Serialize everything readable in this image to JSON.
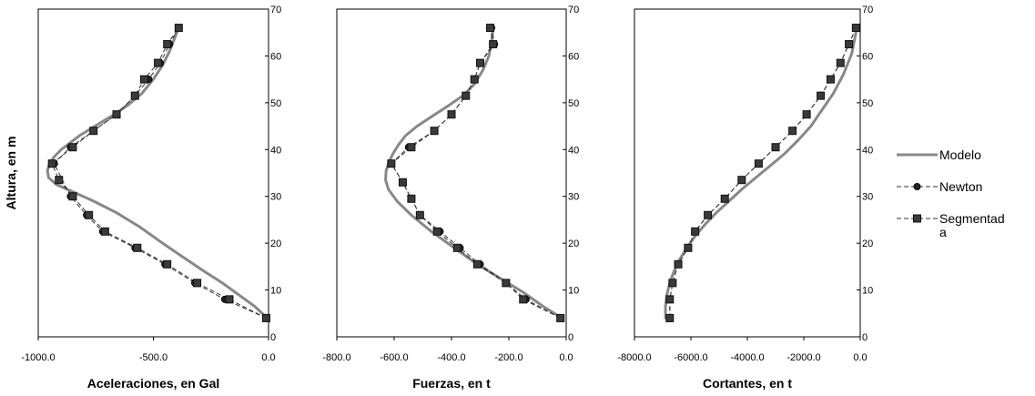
{
  "y_axis_label": "Altura, en m",
  "chart_data": [
    {
      "type": "line",
      "xlabel": "Aceleraciones, en Gal",
      "xlim": [
        -1000,
        0
      ],
      "ylim": [
        0,
        70
      ],
      "xticks": [
        -1000,
        -500,
        0
      ],
      "xtick_labels": [
        "-1000.0",
        "-500.0",
        "0.0"
      ],
      "yticks": [
        0,
        10,
        20,
        30,
        40,
        50,
        60,
        70
      ],
      "grid": false,
      "series": [
        {
          "name": "Modelo",
          "style": "solid",
          "color": "#888888",
          "x": [
            -5,
            -60,
            -130,
            -200,
            -280,
            -370,
            -460,
            -560,
            -660,
            -760,
            -850,
            -920,
            -955,
            -960,
            -950,
            -930,
            -900,
            -860,
            -820,
            -770,
            -720,
            -670,
            -610,
            -550,
            -500,
            -460,
            -430,
            -410,
            -390
          ],
          "y": [
            4,
            6.5,
            9,
            11.5,
            14,
            17,
            20,
            23.5,
            26.5,
            29,
            31,
            32.5,
            34,
            35.5,
            37,
            38.5,
            40,
            41.5,
            43,
            44.5,
            46,
            47.5,
            49.5,
            52,
            55,
            58,
            61,
            63.5,
            66
          ]
        },
        {
          "name": "Newton",
          "style": "dashed-circle",
          "color": "#333333",
          "x": [
            -10,
            -190,
            -320,
            -450,
            -580,
            -720,
            -790,
            -860,
            -930,
            -860,
            -760,
            -660,
            -580,
            -520,
            -470,
            -430,
            -390
          ],
          "y": [
            4,
            8,
            11.5,
            15.5,
            19,
            22.5,
            26,
            30,
            37,
            40.5,
            44,
            47.5,
            51.5,
            55,
            58.5,
            62.5,
            66
          ]
        },
        {
          "name": "Segmentada",
          "style": "dashed-square",
          "color": "#333333",
          "x": [
            -10,
            -170,
            -310,
            -440,
            -570,
            -710,
            -780,
            -850,
            -910,
            -940,
            -850,
            -760,
            -660,
            -580,
            -540,
            -480,
            -440,
            -390
          ],
          "y": [
            4,
            8,
            11.5,
            15.5,
            19,
            22.5,
            26,
            30,
            33.5,
            37,
            40.5,
            44,
            47.5,
            51.5,
            55,
            58.5,
            62.5,
            66
          ]
        }
      ]
    },
    {
      "type": "line",
      "xlabel": "Fuerzas, en t",
      "xlim": [
        -800,
        0
      ],
      "ylim": [
        0,
        70
      ],
      "xticks": [
        -800,
        -600,
        -400,
        -200,
        0
      ],
      "xtick_labels": [
        "-800.0",
        "-600.0",
        "-400.0",
        "-200.0",
        "0.0"
      ],
      "yticks": [
        0,
        10,
        20,
        30,
        40,
        50,
        60,
        70
      ],
      "grid": false,
      "series": [
        {
          "name": "Modelo",
          "style": "solid",
          "color": "#888888",
          "x": [
            -15,
            -80,
            -150,
            -230,
            -310,
            -390,
            -470,
            -540,
            -590,
            -620,
            -630,
            -628,
            -620,
            -605,
            -585,
            -560,
            -520,
            -470,
            -420,
            -360,
            -320,
            -290,
            -270,
            -260,
            -255
          ],
          "y": [
            4,
            6.5,
            9.5,
            12.5,
            15.5,
            19,
            22.5,
            26,
            29,
            31.5,
            33.5,
            35.5,
            37,
            39,
            41,
            43,
            45,
            47,
            49,
            51.5,
            54,
            57,
            60,
            63,
            66
          ]
        },
        {
          "name": "Newton",
          "style": "dashed-circle",
          "color": "#333333",
          "x": [
            -20,
            -140,
            -210,
            -300,
            -370,
            -440,
            -510,
            -540,
            -570,
            -610,
            -550,
            -460,
            -400,
            -350,
            -320,
            -300,
            -250,
            -260
          ],
          "y": [
            4,
            8,
            11.5,
            15.5,
            19,
            22.5,
            26,
            29.5,
            33,
            37,
            40.5,
            44,
            47.5,
            51.5,
            55,
            58.5,
            62.5,
            66
          ]
        },
        {
          "name": "Segmentada",
          "style": "dashed-square",
          "color": "#333333",
          "x": [
            -20,
            -150,
            -210,
            -310,
            -380,
            -450,
            -510,
            -540,
            -570,
            -610,
            -540,
            -460,
            -400,
            -350,
            -320,
            -300,
            -255,
            -265
          ],
          "y": [
            4,
            8,
            11.5,
            15.5,
            19,
            22.5,
            26,
            29.5,
            33,
            37,
            40.5,
            44,
            47.5,
            51.5,
            55,
            58.5,
            62.5,
            66
          ]
        }
      ]
    },
    {
      "type": "line",
      "xlabel": "Cortantes, en t",
      "xlim": [
        -8000,
        0
      ],
      "ylim": [
        0,
        70
      ],
      "xticks": [
        -8000,
        -6000,
        -4000,
        -2000,
        0
      ],
      "xtick_labels": [
        "-8000.0",
        "-6000.0",
        "-4000.0",
        "-2000.0",
        "0.0"
      ],
      "yticks": [
        0,
        10,
        20,
        30,
        40,
        50,
        60,
        70
      ],
      "grid": false,
      "series": [
        {
          "name": "Modelo",
          "style": "solid",
          "color": "#888888",
          "x": [
            -6900,
            -6900,
            -6850,
            -6750,
            -6600,
            -6400,
            -6150,
            -5850,
            -5500,
            -5100,
            -4650,
            -4200,
            -3700,
            -3200,
            -2700,
            -2200,
            -1750,
            -1350,
            -950,
            -600,
            -300,
            -120
          ],
          "y": [
            4,
            6.5,
            9,
            11.5,
            14,
            16.5,
            19,
            21.5,
            24,
            26.5,
            29,
            31.5,
            34,
            36.5,
            39,
            42,
            45,
            48.5,
            52,
            56,
            60.5,
            66
          ]
        },
        {
          "name": "Newton",
          "style": "dashed-circle",
          "color": "#333333",
          "x": [
            -6750,
            -6750,
            -6650,
            -6450,
            -6100,
            -5850,
            -5400,
            -4800,
            -4200,
            -3600,
            -3000,
            -2400,
            -1900,
            -1400,
            -1050,
            -700,
            -400,
            -150
          ],
          "y": [
            4,
            8,
            11.5,
            15.5,
            19,
            22.5,
            26,
            29.5,
            33.5,
            37,
            40.5,
            44,
            47.5,
            51.5,
            55,
            58.5,
            62.5,
            66
          ]
        },
        {
          "name": "Segmentada",
          "style": "dashed-square",
          "color": "#333333",
          "x": [
            -6750,
            -6750,
            -6650,
            -6450,
            -6100,
            -5850,
            -5400,
            -4800,
            -4200,
            -3600,
            -3000,
            -2400,
            -1900,
            -1400,
            -1050,
            -700,
            -400,
            -150
          ],
          "y": [
            4,
            8,
            11.5,
            15.5,
            19,
            22.5,
            26,
            29.5,
            33.5,
            37,
            40.5,
            44,
            47.5,
            51.5,
            55,
            58.5,
            62.5,
            66
          ]
        }
      ]
    }
  ],
  "legend": [
    {
      "label": "Modelo",
      "style": "solid",
      "color": "#888888",
      "icon": "gray-line-icon"
    },
    {
      "label": "Newton",
      "style": "dashed-circle",
      "color": "#333333",
      "icon": "dashed-circle-marker-icon"
    },
    {
      "label": "Segmentad",
      "style": "dashed-square",
      "color": "#333333",
      "icon": "dashed-square-marker-icon",
      "label_overflow": "a"
    }
  ]
}
